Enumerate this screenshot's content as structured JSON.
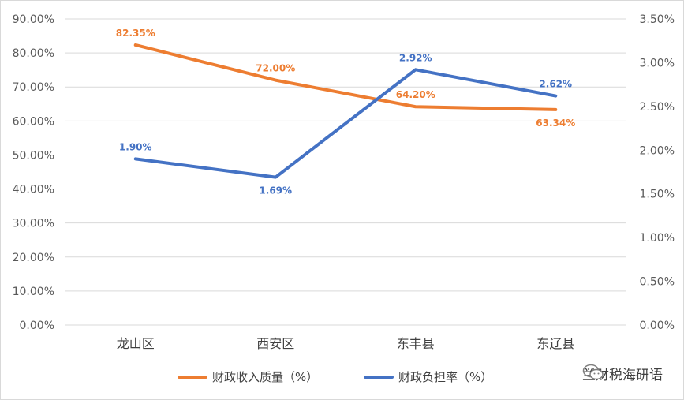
{
  "chart_data": {
    "type": "line",
    "categories": [
      "龙山区",
      "西安区",
      "东丰县",
      "东辽县"
    ],
    "series": [
      {
        "name": "财政收入质量（%）",
        "axis": "left",
        "color": "#ED7D31",
        "values": [
          82.35,
          72.0,
          64.2,
          63.34
        ],
        "labels": [
          "82.35%",
          "72.00%",
          "64.20%",
          "63.34%"
        ]
      },
      {
        "name": "财政负担率（%）",
        "axis": "right",
        "color": "#4472C4",
        "values": [
          1.9,
          1.69,
          2.92,
          2.62
        ],
        "labels": [
          "1.90%",
          "1.69%",
          "2.92%",
          "2.62%"
        ]
      }
    ],
    "y_left": {
      "ylim": [
        0,
        90
      ],
      "ticks": [
        "0.00%",
        "10.00%",
        "20.00%",
        "30.00%",
        "40.00%",
        "50.00%",
        "60.00%",
        "70.00%",
        "80.00%",
        "90.00%"
      ]
    },
    "y_right": {
      "ylim": [
        0,
        3.5
      ],
      "ticks": [
        "0.00%",
        "0.50%",
        "1.00%",
        "1.50%",
        "2.00%",
        "2.50%",
        "3.00%",
        "3.50%"
      ]
    },
    "grid": true,
    "legend": "bottom"
  },
  "watermark": {
    "text": "兰财税海研语",
    "icon": "wechat-icon"
  }
}
